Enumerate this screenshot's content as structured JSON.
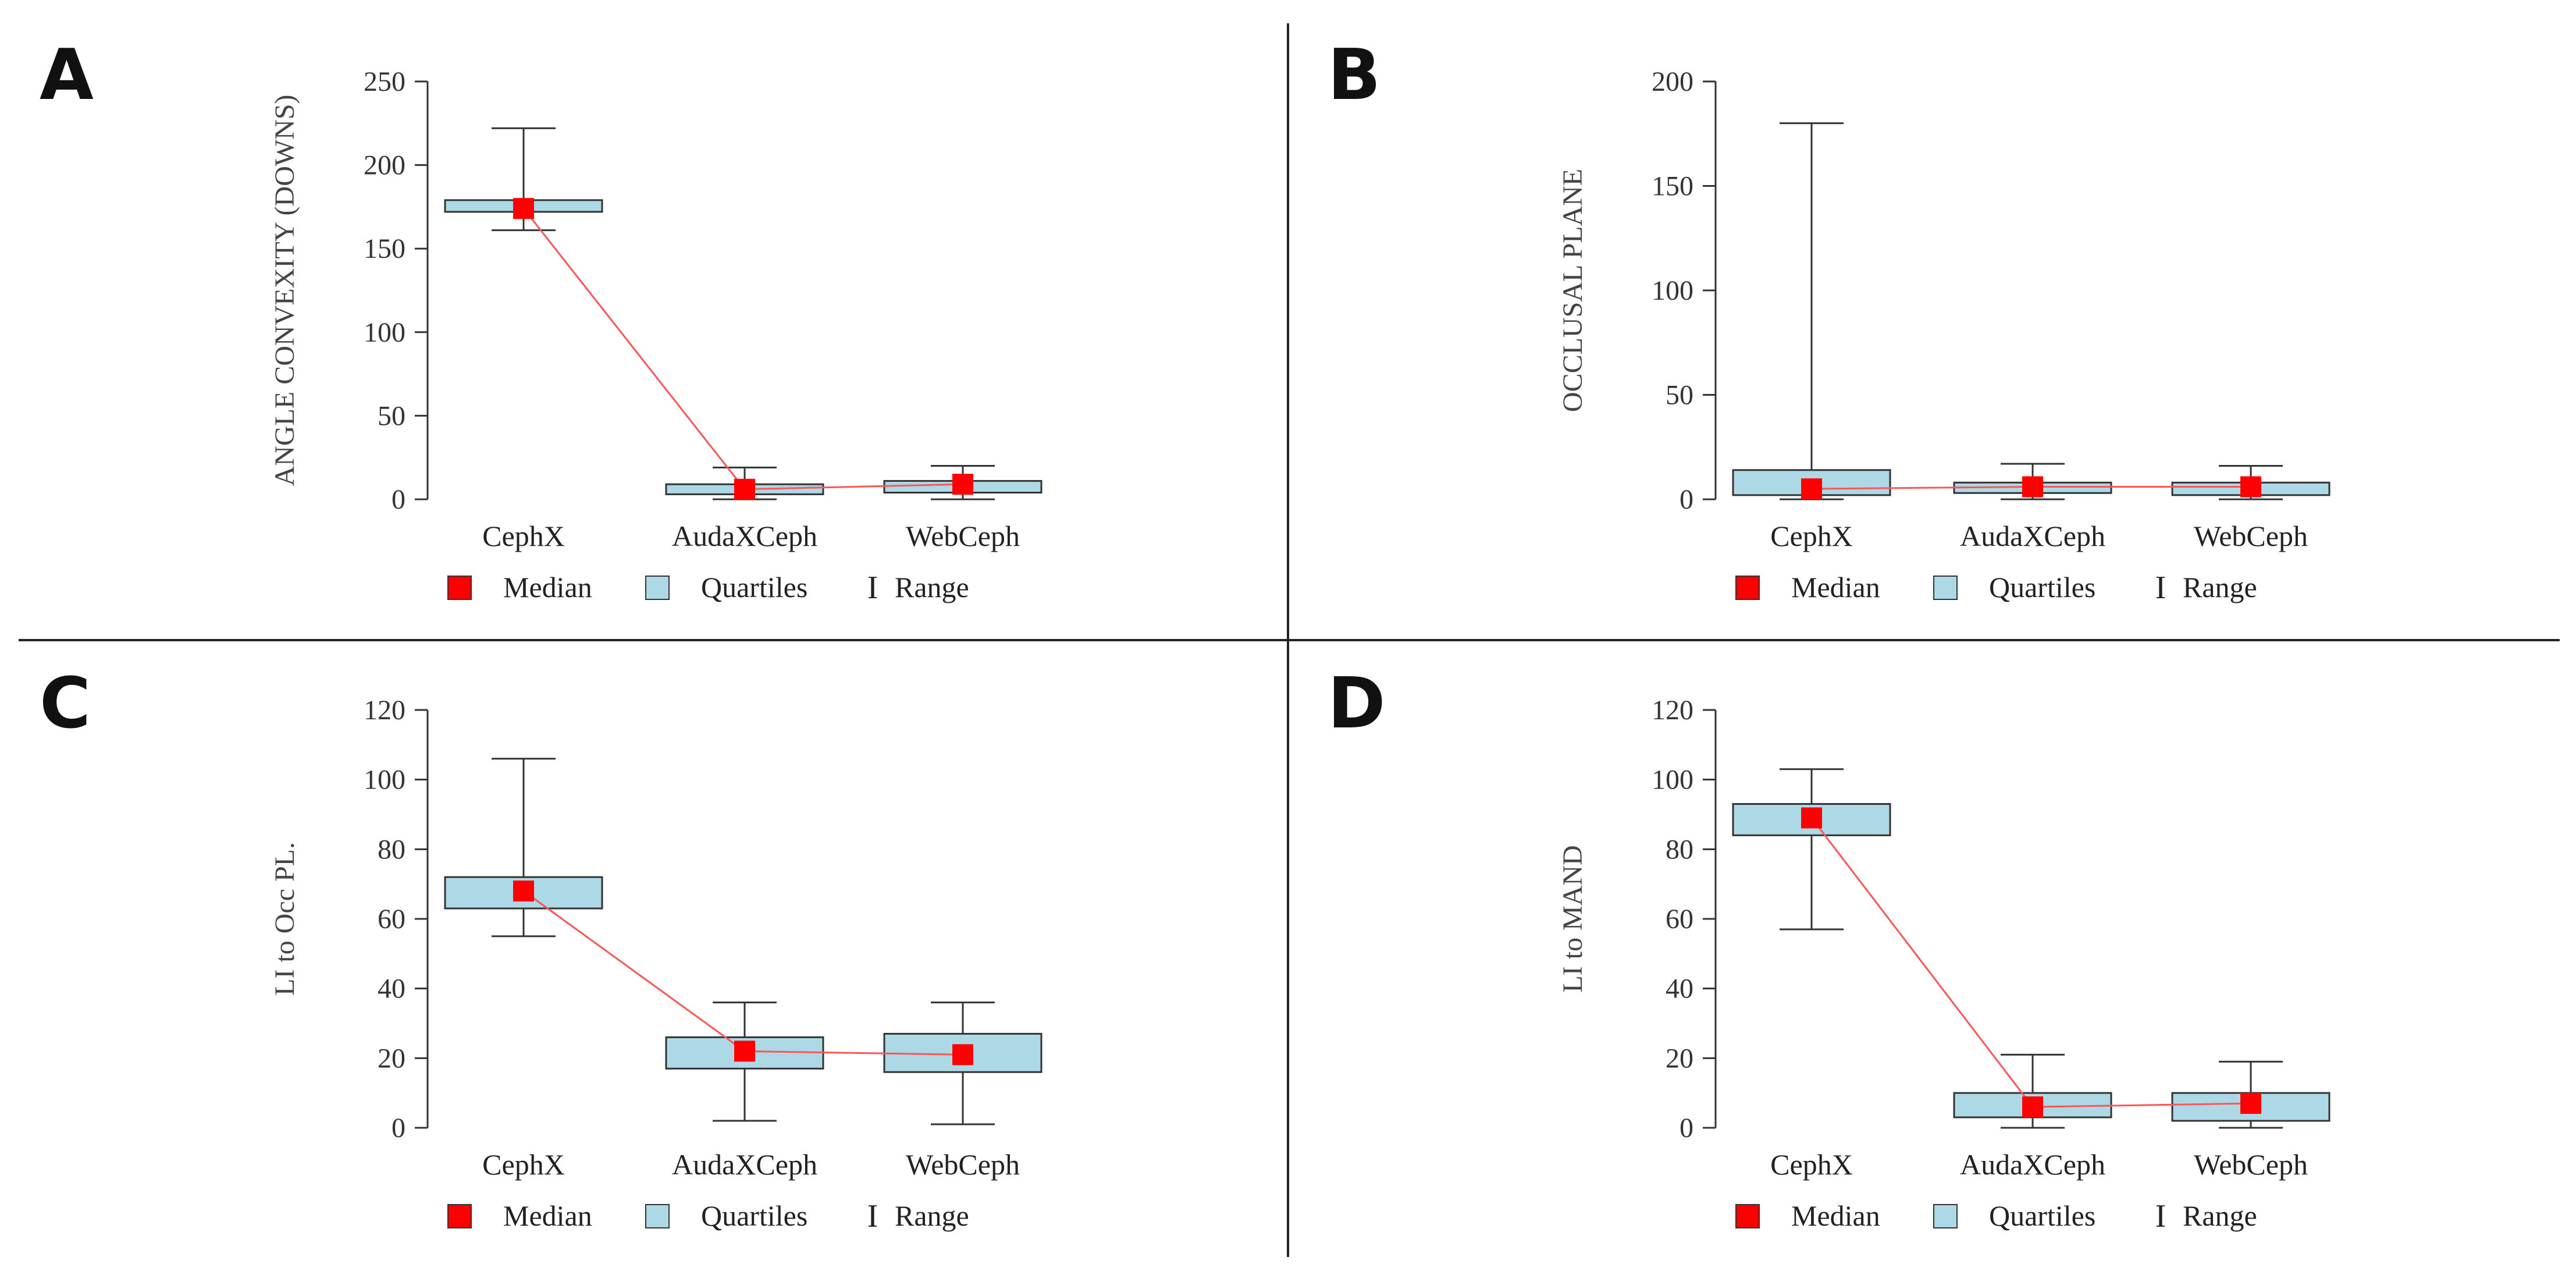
{
  "figure": {
    "legend": {
      "median": "Median",
      "quartiles": "Quartiles",
      "range": "Range",
      "range_glyph": "I"
    },
    "colors": {
      "box_fill": "#ADD8E6",
      "median": "#FF0000",
      "median_line": "#FF5555",
      "whisker": "#333333",
      "divider": "#222222"
    }
  },
  "chart_data": [
    {
      "panel": "A",
      "type": "boxplot",
      "ylabel": "ANGLE CONVEXITY (DOWNS)",
      "ylim": [
        0,
        250
      ],
      "yticks": [
        0,
        50,
        100,
        150,
        200,
        250
      ],
      "categories": [
        "CephX",
        "AudaXCeph",
        "WebCeph"
      ],
      "min": [
        161,
        0,
        0
      ],
      "q1": [
        172,
        3,
        4
      ],
      "median": [
        174,
        6,
        9
      ],
      "q3": [
        179,
        9,
        11
      ],
      "max": [
        222,
        19,
        20
      ]
    },
    {
      "panel": "B",
      "type": "boxplot",
      "ylabel": "OCCLUSAL PLANE",
      "ylim": [
        0,
        200
      ],
      "yticks": [
        0,
        50,
        100,
        150,
        200
      ],
      "categories": [
        "CephX",
        "AudaXCeph",
        "WebCeph"
      ],
      "min": [
        0,
        0,
        0
      ],
      "q1": [
        2,
        3,
        2
      ],
      "median": [
        5,
        6,
        6
      ],
      "q3": [
        14,
        8,
        8
      ],
      "max": [
        180,
        17,
        16
      ]
    },
    {
      "panel": "C",
      "type": "boxplot",
      "ylabel": "LI to Occ PL.",
      "ylim": [
        0,
        120
      ],
      "yticks": [
        0,
        20,
        40,
        60,
        80,
        100,
        120
      ],
      "categories": [
        "CephX",
        "AudaXCeph",
        "WebCeph"
      ],
      "min": [
        55,
        2,
        1
      ],
      "q1": [
        63,
        17,
        16
      ],
      "median": [
        68,
        22,
        21
      ],
      "q3": [
        72,
        26,
        27
      ],
      "max": [
        106,
        36,
        36
      ]
    },
    {
      "panel": "D",
      "type": "boxplot",
      "ylabel": "LI to MAND",
      "ylim": [
        0,
        120
      ],
      "yticks": [
        0,
        20,
        40,
        60,
        80,
        100,
        120
      ],
      "categories": [
        "CephX",
        "AudaXCeph",
        "WebCeph"
      ],
      "min": [
        57,
        0,
        0
      ],
      "q1": [
        84,
        3,
        2
      ],
      "median": [
        89,
        6,
        7
      ],
      "q3": [
        93,
        10,
        10
      ],
      "max": [
        103,
        21,
        19
      ]
    }
  ]
}
